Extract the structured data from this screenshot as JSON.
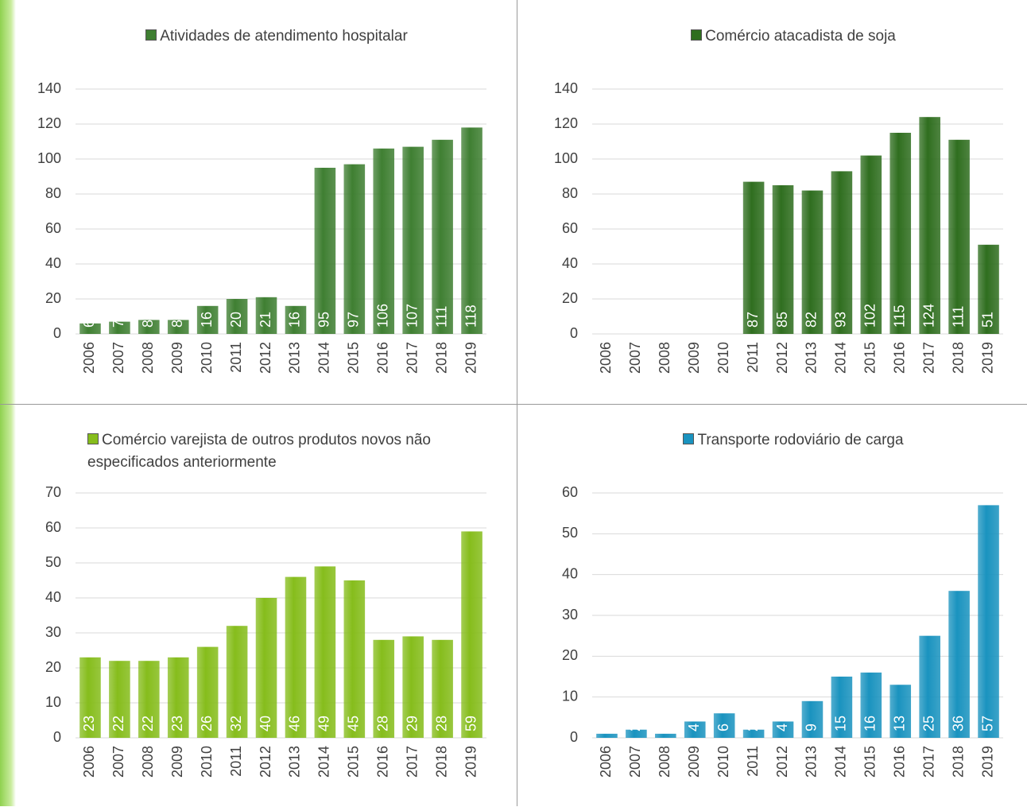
{
  "chart_data": [
    {
      "type": "bar",
      "categories": [
        "2006",
        "2007",
        "2008",
        "2009",
        "2010",
        "2011",
        "2012",
        "2013",
        "2014",
        "2015",
        "2016",
        "2017",
        "2018",
        "2019"
      ],
      "series": [
        {
          "name": "Atividades de atendimento hospitalar",
          "color": "#3f7f32",
          "values": [
            6,
            7,
            8,
            8,
            16,
            20,
            21,
            16,
            95,
            97,
            106,
            107,
            111,
            118
          ]
        }
      ],
      "ylim": [
        0,
        140
      ],
      "yticks": [
        0,
        20,
        40,
        60,
        80,
        100,
        120,
        140
      ],
      "grid": true
    },
    {
      "type": "bar",
      "categories": [
        "2006",
        "2007",
        "2008",
        "2009",
        "2010",
        "2011",
        "2012",
        "2013",
        "2014",
        "2015",
        "2016",
        "2017",
        "2018",
        "2019"
      ],
      "series": [
        {
          "name": "Comércio atacadista de soja",
          "color": "#2f6e1f",
          "values": [
            null,
            null,
            null,
            null,
            null,
            87,
            85,
            82,
            93,
            102,
            115,
            124,
            111,
            51
          ]
        }
      ],
      "ylim": [
        0,
        140
      ],
      "yticks": [
        0,
        20,
        40,
        60,
        80,
        100,
        120,
        140
      ],
      "grid": true
    },
    {
      "type": "bar",
      "categories": [
        "2006",
        "2007",
        "2008",
        "2009",
        "2010",
        "2011",
        "2012",
        "2013",
        "2014",
        "2015",
        "2016",
        "2017",
        "2018",
        "2019"
      ],
      "series": [
        {
          "name": "Comércio varejista de outros produtos novos não especificados anteriormente",
          "color": "#86bd1c",
          "values": [
            23,
            22,
            22,
            23,
            26,
            32,
            40,
            46,
            49,
            45,
            28,
            29,
            28,
            59
          ]
        }
      ],
      "ylim": [
        0,
        70
      ],
      "yticks": [
        0,
        10,
        20,
        30,
        40,
        50,
        60,
        70
      ],
      "grid": true
    },
    {
      "type": "bar",
      "categories": [
        "2006",
        "2007",
        "2008",
        "2009",
        "2010",
        "2011",
        "2012",
        "2013",
        "2014",
        "2015",
        "2016",
        "2017",
        "2018",
        "2019"
      ],
      "series": [
        {
          "name": "Transporte rodoviário de carga",
          "color": "#1a93bf",
          "values": [
            1,
            2,
            1,
            4,
            6,
            2,
            4,
            9,
            15,
            16,
            13,
            25,
            36,
            57
          ]
        }
      ],
      "ylim": [
        0,
        60
      ],
      "yticks": [
        0,
        10,
        20,
        30,
        40,
        50,
        60
      ],
      "grid": true
    }
  ]
}
